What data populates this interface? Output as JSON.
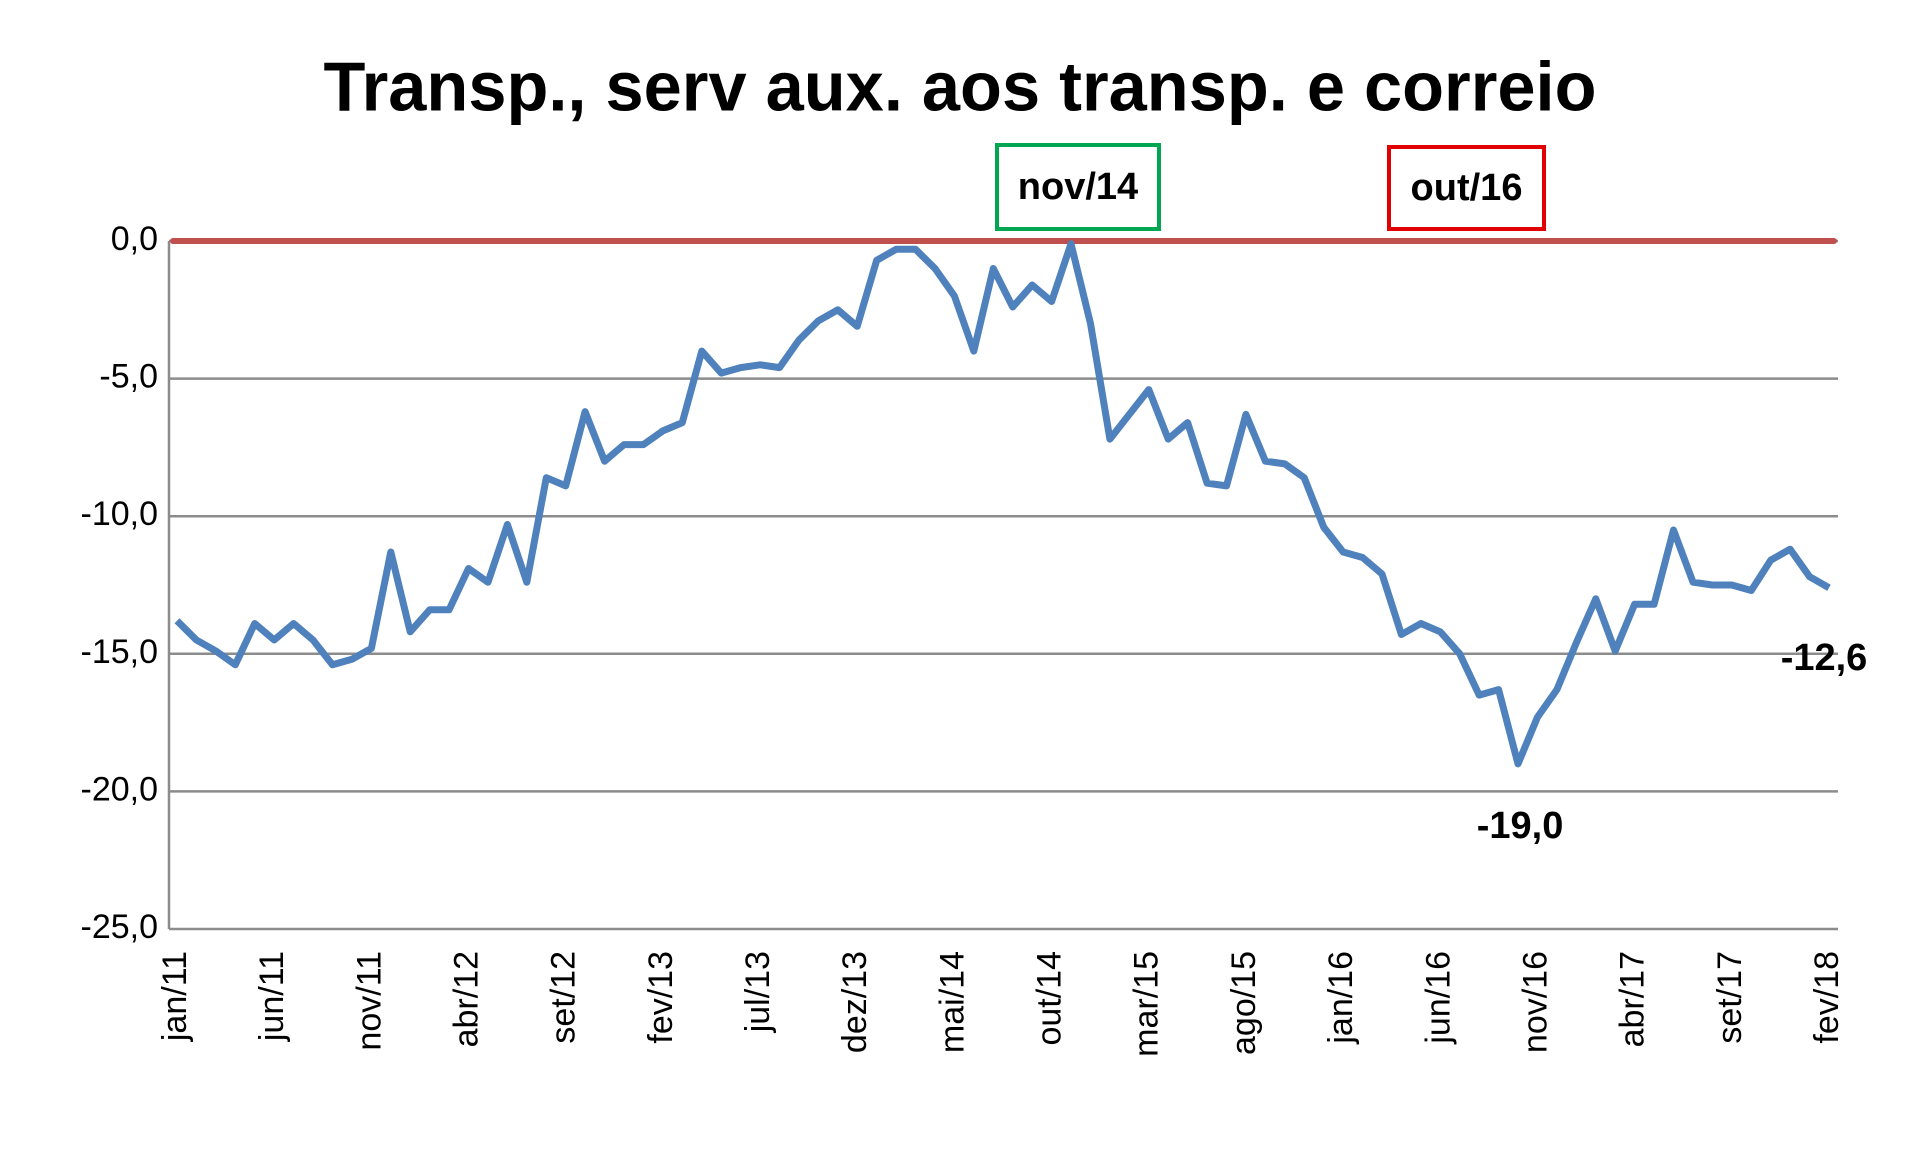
{
  "chart_data": {
    "type": "line",
    "title": "Transp., serv aux. aos transp. e correio",
    "categories": [
      "jan/11",
      null,
      null,
      null,
      null,
      "jun/11",
      null,
      null,
      null,
      null,
      "nov/11",
      null,
      null,
      null,
      null,
      "abr/12",
      null,
      null,
      null,
      null,
      "set/12",
      null,
      null,
      null,
      null,
      "fev/13",
      null,
      null,
      null,
      null,
      "jul/13",
      null,
      null,
      null,
      null,
      "dez/13",
      null,
      null,
      null,
      null,
      "mai/14",
      null,
      null,
      null,
      null,
      "out/14",
      null,
      null,
      null,
      null,
      "mar/15",
      null,
      null,
      null,
      null,
      "ago/15",
      null,
      null,
      null,
      null,
      "jan/16",
      null,
      null,
      null,
      null,
      "jun/16",
      null,
      null,
      null,
      null,
      "nov/16",
      null,
      null,
      null,
      null,
      "abr/17",
      null,
      null,
      null,
      null,
      "set/17",
      null,
      null,
      null,
      null,
      "fev/18"
    ],
    "series": [
      {
        "color": "#4f81bd",
        "values": [
          -13.8,
          -14.5,
          -14.9,
          -15.4,
          -13.9,
          -14.5,
          -13.9,
          -14.5,
          -15.4,
          -15.2,
          -14.8,
          -11.3,
          -14.2,
          -13.4,
          -13.4,
          -11.9,
          -12.4,
          -10.3,
          -12.4,
          -8.6,
          -8.9,
          -6.2,
          -8.0,
          -7.4,
          -7.4,
          -6.9,
          -6.6,
          -4.0,
          -4.8,
          -4.6,
          -4.5,
          -4.6,
          -3.6,
          -2.9,
          -2.5,
          -3.1,
          -0.7,
          -0.3,
          -0.3,
          -1.0,
          -2.0,
          -4.0,
          -1.0,
          -2.4,
          -1.6,
          -2.2,
          -0.1,
          -3.0,
          -7.2,
          -6.3,
          -5.4,
          -7.2,
          -6.6,
          -8.8,
          -8.9,
          -6.3,
          -8.0,
          -8.1,
          -8.6,
          -10.4,
          -11.3,
          -11.5,
          -12.1,
          -14.3,
          -13.9,
          -14.2,
          -15.0,
          -16.5,
          -16.3,
          -19.0,
          -17.3,
          -16.3,
          -14.6,
          -13.0,
          -14.9,
          -13.2,
          -13.2,
          -10.5,
          -12.4,
          -12.5,
          -12.5,
          -12.7,
          -11.6,
          -11.2,
          -12.2,
          -12.6
        ],
        "value_labels": [
          null,
          null,
          null,
          null,
          null,
          null,
          null,
          null,
          null,
          null,
          null,
          null,
          null,
          null,
          null,
          null,
          null,
          null,
          null,
          null,
          null,
          null,
          null,
          null,
          null,
          null,
          null,
          null,
          null,
          null,
          null,
          null,
          null,
          null,
          null,
          null,
          null,
          null,
          null,
          null,
          null,
          null,
          null,
          null,
          null,
          null,
          null,
          null,
          null,
          null,
          null,
          null,
          null,
          null,
          null,
          null,
          null,
          null,
          null,
          null,
          null,
          null,
          null,
          null,
          null,
          null,
          null,
          null,
          null,
          "-19,0",
          null,
          null,
          null,
          null,
          null,
          null,
          null,
          null,
          null,
          null,
          null,
          null,
          null,
          null,
          null,
          "-12,6"
        ],
        "value_label_color": "#ff0000"
      }
    ],
    "ylim": [
      -25,
      0
    ],
    "yticks": [
      {
        "value": -25,
        "label": "-25,0"
      },
      {
        "value": -20,
        "label": "-20,0"
      },
      {
        "value": -15,
        "label": "-15,0"
      },
      {
        "value": -10,
        "label": "-10,0"
      },
      {
        "value": -5,
        "label": "-5,0"
      },
      {
        "value": 0,
        "label": "0,0"
      }
    ],
    "grid": true,
    "reference_line": {
      "value": 0,
      "color": "#c0504d"
    },
    "annotations": [
      {
        "text": "nov/14",
        "color": "#00a650"
      },
      {
        "text": "out/16",
        "color": "#e00000"
      }
    ]
  }
}
